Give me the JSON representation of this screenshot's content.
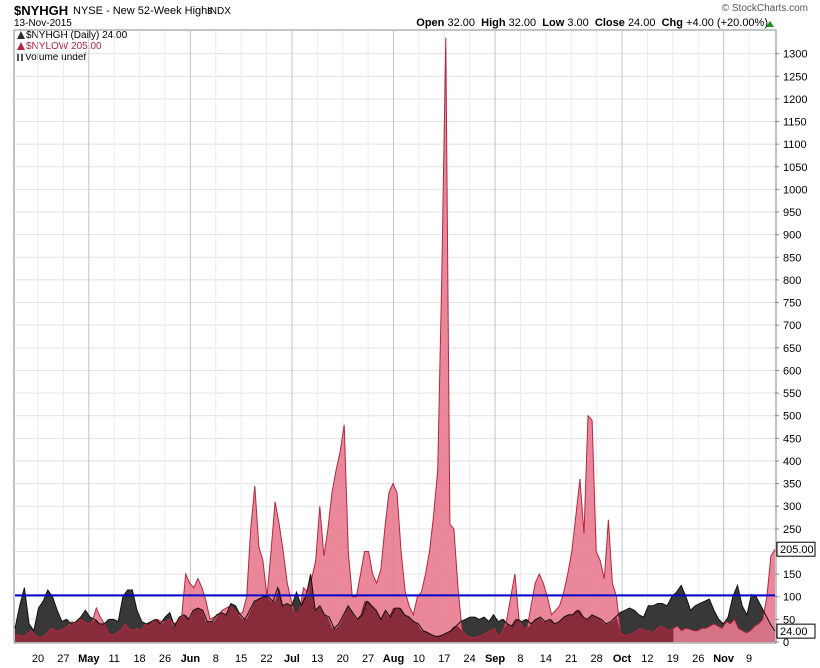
{
  "header": {
    "symbol": "$NYHGH",
    "description": "NYSE - New 52-Week Highs",
    "exchange": "INDX",
    "date": "13-Nov-2015",
    "brand": "© StockCharts.com",
    "open_label": "Open",
    "open": "32.00",
    "high_label": "High",
    "high": "32.00",
    "low_label": "Low",
    "low": "3.00",
    "close_label": "Close",
    "close": "24.00",
    "chg_label": "Chg",
    "chg": "+4.00 (+20.00%)"
  },
  "legend": {
    "nyhgh": "$NYHGH (Daily) 24.00",
    "nylow": "$NYLOW 205.00",
    "volume": "Volume undef"
  },
  "colors": {
    "nyhgh": "#2d2d2d",
    "nylow_fill": "#e87a8f",
    "nylow_line": "#b2283f",
    "overlap": "#7a1f2e",
    "hline": "#0000cc",
    "up": "#1a8d1a"
  },
  "chart_data": {
    "type": "area",
    "ylim": [
      0,
      1350
    ],
    "y_ticks": [
      0,
      50,
      100,
      150,
      200,
      250,
      300,
      350,
      400,
      450,
      500,
      550,
      600,
      650,
      700,
      750,
      800,
      850,
      900,
      950,
      1000,
      1050,
      1100,
      1150,
      1200,
      1250,
      1300
    ],
    "x_tick_labels": [
      "20",
      "27",
      "May",
      "11",
      "18",
      "26",
      "Jun",
      "8",
      "15",
      "22",
      "Jul",
      "13",
      "20",
      "27",
      "Aug",
      "10",
      "17",
      "24",
      "Sep",
      "8",
      "14",
      "21",
      "28",
      "Oct",
      "12",
      "19",
      "26",
      "Nov",
      "9"
    ],
    "month_labels": [
      "May",
      "Jun",
      "Jul",
      "Aug",
      "Sep",
      "Oct",
      "Nov"
    ],
    "hline_value": 103,
    "last_values": {
      "nylow": "205.00",
      "nyhgh": "24.00"
    },
    "series": [
      {
        "name": "$NYHGH",
        "values": [
          30,
          80,
          120,
          40,
          25,
          75,
          90,
          115,
          100,
          70,
          45,
          50,
          40,
          45,
          55,
          70,
          55,
          50,
          40,
          40,
          50,
          50,
          45,
          100,
          115,
          115,
          70,
          45,
          40,
          45,
          50,
          40,
          55,
          65,
          35,
          55,
          60,
          50,
          70,
          75,
          70,
          45,
          45,
          60,
          65,
          60,
          85,
          80,
          60,
          50,
          70,
          90,
          95,
          100,
          100,
          90,
          120,
          80,
          85,
          80,
          110,
          80,
          100,
          150,
          70,
          80,
          60,
          55,
          30,
          40,
          60,
          80,
          65,
          50,
          60,
          90,
          80,
          70,
          50,
          70,
          55,
          75,
          75,
          60,
          55,
          45,
          40,
          25,
          20,
          15,
          12,
          15,
          20,
          25,
          35,
          45,
          50,
          55,
          55,
          50,
          55,
          45,
          60,
          45,
          50,
          40,
          35,
          50,
          45,
          50,
          40,
          50,
          55,
          45,
          50,
          40,
          45,
          55,
          60,
          60,
          70,
          55,
          50,
          60,
          55,
          50,
          40,
          45,
          55,
          65,
          70,
          75,
          70,
          60,
          55,
          80,
          80,
          85,
          85,
          80,
          100,
          110,
          125,
          100,
          70,
          80,
          85,
          90,
          95,
          70,
          50,
          40,
          55,
          100,
          125,
          80,
          60,
          105,
          100,
          80,
          60,
          40,
          24
        ]
      },
      {
        "name": "$NYLOW",
        "values": [
          15,
          15,
          12,
          18,
          25,
          15,
          10,
          12,
          20,
          30,
          25,
          25,
          30,
          35,
          45,
          40,
          50,
          45,
          40,
          45,
          75,
          55,
          40,
          20,
          15,
          20,
          25,
          40,
          30,
          25,
          30,
          25,
          40,
          35,
          45,
          50,
          45,
          45,
          50,
          40,
          45,
          55,
          150,
          130,
          120,
          140,
          120,
          90,
          50,
          55,
          60,
          70,
          75,
          80,
          70,
          60,
          65,
          100,
          250,
          345,
          210,
          180,
          100,
          200,
          310,
          260,
          200,
          130,
          90,
          60,
          70,
          120,
          110,
          140,
          180,
          300,
          190,
          250,
          330,
          380,
          420,
          480,
          200,
          100,
          100,
          150,
          200,
          200,
          150,
          130,
          160,
          250,
          330,
          350,
          330,
          200,
          110,
          80,
          60,
          100,
          110,
          150,
          200,
          280,
          380,
          800,
          1335,
          260,
          250,
          120,
          25,
          15,
          10,
          10,
          12,
          15,
          20,
          25,
          30,
          10,
          25,
          50,
          100,
          150,
          50,
          30,
          30,
          80,
          130,
          150,
          130,
          100,
          60,
          70,
          80,
          110,
          150,
          200,
          280,
          360,
          240,
          500,
          490,
          200,
          180,
          140,
          270,
          130,
          100,
          20,
          15,
          15,
          20,
          25,
          30,
          25,
          25,
          20,
          30,
          35,
          30,
          25,
          30,
          35,
          25,
          30,
          28,
          25,
          25,
          30,
          30,
          35,
          40,
          35,
          30,
          45,
          40,
          50,
          30,
          25,
          20,
          25,
          35,
          40,
          50,
          100,
          190,
          205
        ]
      }
    ]
  }
}
